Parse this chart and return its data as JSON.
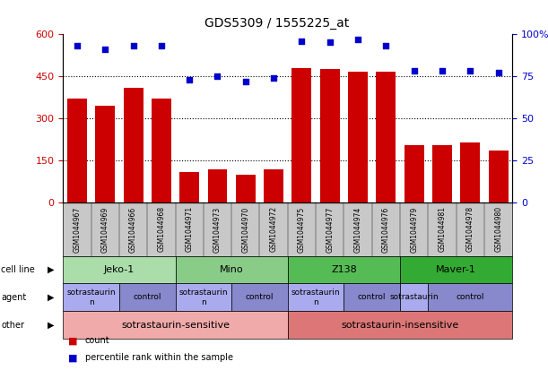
{
  "title": "GDS5309 / 1555225_at",
  "samples": [
    "GSM1044967",
    "GSM1044969",
    "GSM1044966",
    "GSM1044968",
    "GSM1044971",
    "GSM1044973",
    "GSM1044970",
    "GSM1044972",
    "GSM1044975",
    "GSM1044977",
    "GSM1044974",
    "GSM1044976",
    "GSM1044979",
    "GSM1044981",
    "GSM1044978",
    "GSM1044980"
  ],
  "counts": [
    370,
    345,
    410,
    370,
    110,
    120,
    100,
    120,
    480,
    475,
    465,
    465,
    205,
    205,
    215,
    185
  ],
  "percentiles": [
    93,
    91,
    93,
    93,
    73,
    75,
    72,
    74,
    96,
    95,
    97,
    93,
    78,
    78,
    78,
    77
  ],
  "bar_color": "#cc0000",
  "dot_color": "#0000cc",
  "ylim_left": [
    0,
    600
  ],
  "ylim_right": [
    0,
    100
  ],
  "yticks_left": [
    0,
    150,
    300,
    450,
    600
  ],
  "ytick_labels_left": [
    "0",
    "150",
    "300",
    "450",
    "600"
  ],
  "yticks_right": [
    0,
    25,
    50,
    75,
    100
  ],
  "ytick_labels_right": [
    "0",
    "25",
    "50",
    "75",
    "100%"
  ],
  "hlines": [
    150,
    300,
    450
  ],
  "cell_line_groups": [
    {
      "label": "Jeko-1",
      "start": 0,
      "end": 4,
      "color": "#aaddaa"
    },
    {
      "label": "Mino",
      "start": 4,
      "end": 8,
      "color": "#88cc88"
    },
    {
      "label": "Z138",
      "start": 8,
      "end": 12,
      "color": "#55bb55"
    },
    {
      "label": "Maver-1",
      "start": 12,
      "end": 16,
      "color": "#33aa33"
    }
  ],
  "agent_groups": [
    {
      "label": "sotrastaurin\nn",
      "start": 0,
      "end": 2,
      "color": "#aaaaee"
    },
    {
      "label": "control",
      "start": 2,
      "end": 4,
      "color": "#8888cc"
    },
    {
      "label": "sotrastaurin\nn",
      "start": 4,
      "end": 6,
      "color": "#aaaaee"
    },
    {
      "label": "control",
      "start": 6,
      "end": 8,
      "color": "#8888cc"
    },
    {
      "label": "sotrastaurin\nn",
      "start": 8,
      "end": 10,
      "color": "#aaaaee"
    },
    {
      "label": "control",
      "start": 10,
      "end": 12,
      "color": "#8888cc"
    },
    {
      "label": "sotrastaurin",
      "start": 12,
      "end": 13,
      "color": "#aaaaee"
    },
    {
      "label": "control",
      "start": 13,
      "end": 16,
      "color": "#8888cc"
    }
  ],
  "other_groups": [
    {
      "label": "sotrastaurin-sensitive",
      "start": 0,
      "end": 8,
      "color": "#f0aaaa"
    },
    {
      "label": "sotrastaurin-insensitive",
      "start": 8,
      "end": 16,
      "color": "#dd7777"
    }
  ],
  "row_labels": [
    "cell line",
    "agent",
    "other"
  ],
  "legend_items": [
    {
      "color": "#cc0000",
      "label": "count"
    },
    {
      "color": "#0000cc",
      "label": "percentile rank within the sample"
    }
  ],
  "xticklabel_bg": "#c8c8c8"
}
